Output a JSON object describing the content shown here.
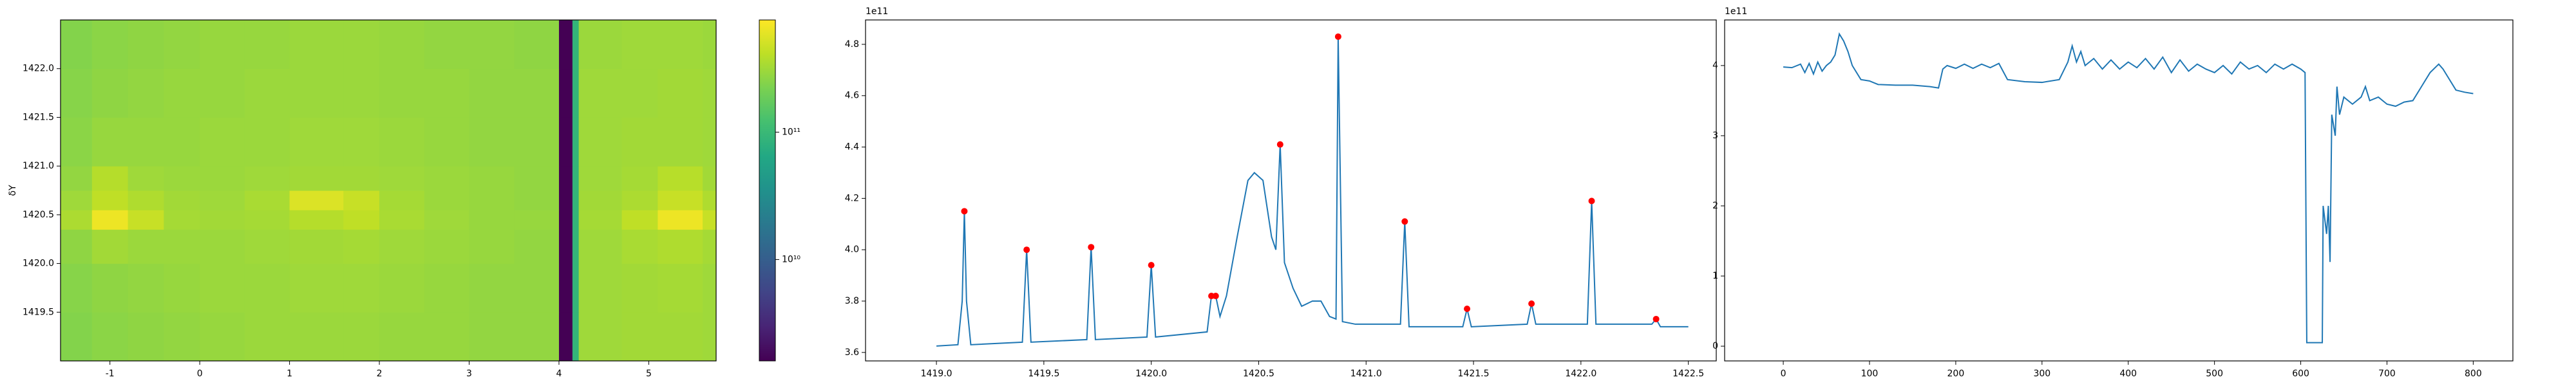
{
  "chart_data": [
    {
      "type": "heatmap",
      "ylabel": "δY",
      "colormap": "viridis",
      "log_color": true,
      "xlim": [
        -1.55,
        5.75
      ],
      "ylim": [
        1419.0,
        1422.5
      ],
      "xticks": [
        -1,
        0,
        1,
        2,
        3,
        4,
        5
      ],
      "yticks": [
        1419.5,
        {
          "value": 1420.0,
          "label": "1420.0"
        },
        1420.5,
        {
          "value": 1421.0,
          "label": "1421.0"
        },
        1421.5,
        {
          "value": 1422.0,
          "label": "1422.0"
        }
      ],
      "x_edges": [
        -1.55,
        -1.2,
        -0.8,
        -0.4,
        0,
        0.5,
        1.0,
        1.6,
        2.0,
        2.5,
        3.0,
        3.5,
        4.0,
        4.15,
        4.22,
        4.7,
        5.1,
        5.6,
        5.75
      ],
      "y_edges": [
        1419.0,
        1419.5,
        1420.0,
        1420.35,
        1420.55,
        1420.75,
        1421.0,
        1421.5,
        1422.0,
        1422.5
      ],
      "values": [
        [
          240000000000.0,
          260000000000.0,
          270000000000.0,
          280000000000.0,
          290000000000.0,
          300000000000.0,
          300000000000.0,
          300000000000.0,
          290000000000.0,
          290000000000.0,
          280000000000.0,
          280000000000.0,
          1600000000.0,
          90000000000.0,
          310000000000.0,
          320000000000.0,
          320000000000.0,
          310000000000.0
        ],
        [
          250000000000.0,
          270000000000.0,
          280000000000.0,
          290000000000.0,
          300000000000.0,
          300000000000.0,
          310000000000.0,
          310000000000.0,
          300000000000.0,
          290000000000.0,
          280000000000.0,
          280000000000.0,
          1600000000.0,
          90000000000.0,
          310000000000.0,
          320000000000.0,
          330000000000.0,
          310000000000.0
        ],
        [
          270000000000.0,
          320000000000.0,
          300000000000.0,
          300000000000.0,
          300000000000.0,
          310000000000.0,
          320000000000.0,
          330000000000.0,
          310000000000.0,
          300000000000.0,
          290000000000.0,
          280000000000.0,
          1600000000.0,
          90000000000.0,
          310000000000.0,
          340000000000.0,
          360000000000.0,
          330000000000.0
        ],
        [
          350000000000.0,
          650000000000.0,
          450000000000.0,
          330000000000.0,
          320000000000.0,
          330000000000.0,
          380000000000.0,
          420000000000.0,
          340000000000.0,
          310000000000.0,
          290000000000.0,
          290000000000.0,
          1600000000.0,
          90000000000.0,
          330000000000.0,
          420000000000.0,
          650000000000.0,
          450000000000.0
        ],
        [
          310000000000.0,
          420000000000.0,
          360000000000.0,
          320000000000.0,
          310000000000.0,
          340000000000.0,
          550000000000.0,
          450000000000.0,
          330000000000.0,
          300000000000.0,
          290000000000.0,
          280000000000.0,
          1600000000.0,
          90000000000.0,
          320000000000.0,
          350000000000.0,
          450000000000.0,
          360000000000.0
        ],
        [
          280000000000.0,
          380000000000.0,
          310000000000.0,
          300000000000.0,
          300000000000.0,
          310000000000.0,
          320000000000.0,
          320000000000.0,
          310000000000.0,
          300000000000.0,
          290000000000.0,
          280000000000.0,
          1600000000.0,
          90000000000.0,
          310000000000.0,
          330000000000.0,
          390000000000.0,
          320000000000.0
        ],
        [
          260000000000.0,
          290000000000.0,
          290000000000.0,
          290000000000.0,
          300000000000.0,
          300000000000.0,
          310000000000.0,
          310000000000.0,
          300000000000.0,
          290000000000.0,
          280000000000.0,
          280000000000.0,
          1600000000.0,
          90000000000.0,
          310000000000.0,
          320000000000.0,
          320000000000.0,
          310000000000.0
        ],
        [
          250000000000.0,
          270000000000.0,
          280000000000.0,
          290000000000.0,
          290000000000.0,
          300000000000.0,
          300000000000.0,
          300000000000.0,
          290000000000.0,
          290000000000.0,
          280000000000.0,
          280000000000.0,
          1600000000.0,
          90000000000.0,
          310000000000.0,
          310000000000.0,
          320000000000.0,
          310000000000.0
        ],
        [
          240000000000.0,
          260000000000.0,
          270000000000.0,
          280000000000.0,
          290000000000.0,
          290000000000.0,
          300000000000.0,
          300000000000.0,
          290000000000.0,
          280000000000.0,
          280000000000.0,
          270000000000.0,
          1600000000.0,
          90000000000.0,
          300000000000.0,
          310000000000.0,
          310000000000.0,
          300000000000.0
        ]
      ],
      "clim": [
        1600000000.0,
        760000000000.0
      ],
      "cticks": [
        {
          "value": 10000000000.0,
          "label": "10¹⁰"
        },
        {
          "value": 100000000000.0,
          "label": "10¹¹"
        }
      ]
    },
    {
      "type": "line",
      "offset_text": "1e11",
      "xlim": [
        1418.67,
        1422.63
      ],
      "ylim": [
        3.567,
        4.895
      ],
      "xticks": [
        {
          "value": 1419.0,
          "label": "1419.0"
        },
        1419.5,
        {
          "value": 1420.0,
          "label": "1420.0"
        },
        1420.5,
        {
          "value": 1421.0,
          "label": "1421.0"
        },
        1421.5,
        {
          "value": 1422.0,
          "label": "1422.0"
        },
        1422.5
      ],
      "yticks": [
        3.6,
        3.8,
        {
          "value": 4.0,
          "label": "4.0"
        },
        4.2,
        4.4,
        4.6,
        4.8
      ],
      "x": [
        1419.0,
        1419.1,
        1419.12,
        1419.13,
        1419.14,
        1419.16,
        1419.4,
        1419.42,
        1419.44,
        1419.7,
        1419.72,
        1419.74,
        1419.98,
        1420.0,
        1420.02,
        1420.26,
        1420.28,
        1420.3,
        1420.32,
        1420.35,
        1420.4,
        1420.45,
        1420.48,
        1420.52,
        1420.56,
        1420.58,
        1420.6,
        1420.62,
        1420.66,
        1420.7,
        1420.75,
        1420.79,
        1420.83,
        1420.86,
        1420.87,
        1420.89,
        1420.95,
        1421.16,
        1421.18,
        1421.2,
        1421.45,
        1421.47,
        1421.49,
        1421.75,
        1421.77,
        1421.79,
        1422.03,
        1422.05,
        1422.07,
        1422.33,
        1422.35,
        1422.37,
        1422.5
      ],
      "series": [
        {
          "color": "#1f77b4",
          "values": [
            3.625,
            3.63,
            3.8,
            4.15,
            3.8,
            3.63,
            3.64,
            4.0,
            3.64,
            3.65,
            4.01,
            3.65,
            3.66,
            3.94,
            3.66,
            3.68,
            3.82,
            3.82,
            3.74,
            3.82,
            4.05,
            4.27,
            4.3,
            4.27,
            4.05,
            4.0,
            4.41,
            3.95,
            3.85,
            3.78,
            3.8,
            3.8,
            3.74,
            3.73,
            4.83,
            3.72,
            3.71,
            3.71,
            4.11,
            3.7,
            3.7,
            3.77,
            3.7,
            3.71,
            3.79,
            3.71,
            3.71,
            4.19,
            3.71,
            3.71,
            3.73,
            3.7,
            3.7
          ]
        },
        {
          "color": "#ff0000",
          "mode": "markers",
          "x": [
            1419.13,
            1419.42,
            1419.72,
            1420.0,
            1420.28,
            1420.3,
            1420.6,
            1420.87,
            1421.18,
            1421.47,
            1421.77,
            1422.05,
            1422.35
          ],
          "values": [
            4.15,
            4.0,
            4.01,
            3.94,
            3.82,
            3.82,
            4.41,
            4.83,
            4.11,
            3.77,
            3.79,
            4.19,
            3.73
          ]
        }
      ]
    },
    {
      "type": "line",
      "offset_text": "1e11",
      "xlim": [
        -68,
        846
      ],
      "ylim": [
        -0.21,
        4.65
      ],
      "xticks": [
        0,
        100,
        200,
        300,
        400,
        500,
        600,
        700,
        800
      ],
      "yticks": [
        0,
        1,
        2,
        3,
        4
      ],
      "x": [
        0,
        10,
        20,
        25,
        30,
        35,
        40,
        45,
        50,
        55,
        60,
        65,
        70,
        75,
        80,
        90,
        100,
        110,
        130,
        150,
        170,
        180,
        185,
        190,
        200,
        210,
        220,
        230,
        240,
        250,
        260,
        280,
        300,
        320,
        330,
        335,
        340,
        345,
        350,
        360,
        370,
        380,
        390,
        400,
        410,
        420,
        430,
        440,
        450,
        460,
        470,
        480,
        490,
        500,
        510,
        520,
        530,
        540,
        550,
        560,
        570,
        580,
        590,
        600,
        605,
        607,
        625,
        626,
        630,
        632,
        634,
        636,
        640,
        642,
        645,
        650,
        660,
        670,
        675,
        680,
        690,
        700,
        710,
        720,
        730,
        740,
        750,
        760,
        765,
        770,
        780,
        790,
        800
      ],
      "series": [
        {
          "color": "#1f77b4",
          "values": [
            3.98,
            3.97,
            4.02,
            3.9,
            4.03,
            3.88,
            4.05,
            3.92,
            4.0,
            4.05,
            4.15,
            4.45,
            4.35,
            4.2,
            4.0,
            3.8,
            3.78,
            3.73,
            3.72,
            3.72,
            3.7,
            3.68,
            3.95,
            4.0,
            3.96,
            4.02,
            3.96,
            4.02,
            3.97,
            4.03,
            3.8,
            3.77,
            3.76,
            3.8,
            4.05,
            4.28,
            4.05,
            4.2,
            4.0,
            4.1,
            3.95,
            4.08,
            3.95,
            4.05,
            3.97,
            4.1,
            3.95,
            4.12,
            3.9,
            4.08,
            3.92,
            4.02,
            3.95,
            3.9,
            4.0,
            3.88,
            4.05,
            3.95,
            4.0,
            3.9,
            4.02,
            3.95,
            4.02,
            3.95,
            3.9,
            0.05,
            0.05,
            2.0,
            1.6,
            2.0,
            1.2,
            3.3,
            3.0,
            3.7,
            3.3,
            3.55,
            3.45,
            3.55,
            3.7,
            3.5,
            3.55,
            3.45,
            3.42,
            3.48,
            3.5,
            3.7,
            3.9,
            4.02,
            3.95,
            3.85,
            3.65,
            3.62,
            3.6
          ]
        }
      ]
    }
  ]
}
